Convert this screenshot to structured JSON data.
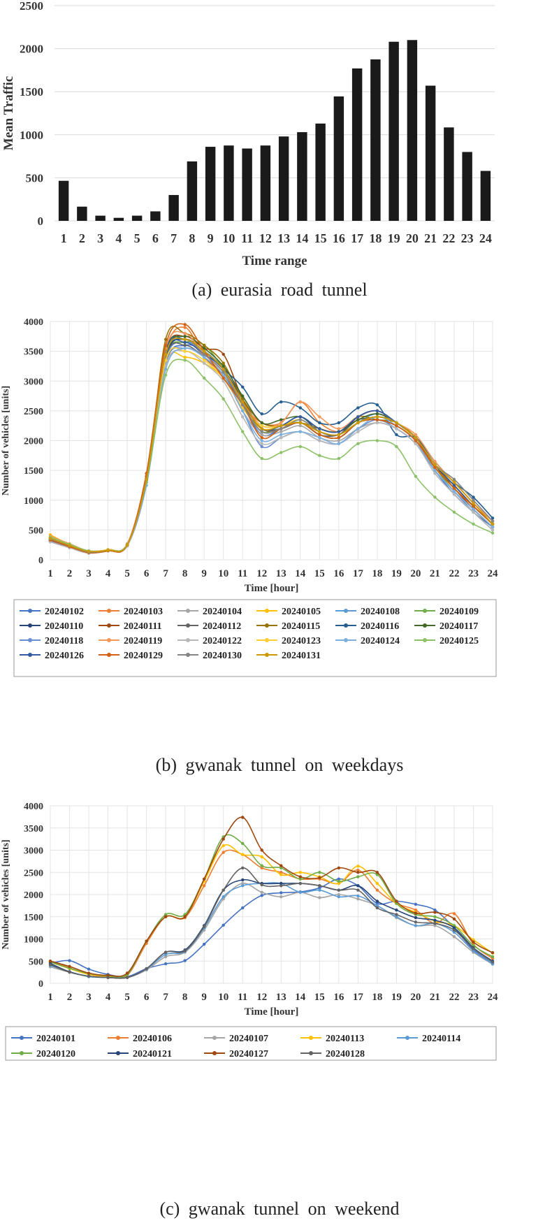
{
  "chart_data": [
    {
      "type": "bar",
      "caption": "(a) eurasia road tunnel",
      "xlabel": "Time range",
      "ylabel": "Mean Traffic",
      "ylim": [
        0,
        2500
      ],
      "yticks": [
        0,
        500,
        1000,
        1500,
        2000,
        2500
      ],
      "grid": true,
      "categories": [
        "1",
        "2",
        "3",
        "4",
        "5",
        "6",
        "7",
        "8",
        "9",
        "10",
        "11",
        "12",
        "13",
        "14",
        "15",
        "16",
        "17",
        "18",
        "19",
        "20",
        "21",
        "22",
        "23",
        "24"
      ],
      "values": [
        465,
        165,
        60,
        35,
        60,
        110,
        300,
        690,
        860,
        875,
        840,
        875,
        980,
        1030,
        1130,
        1445,
        1770,
        1875,
        2080,
        2100,
        1570,
        1085,
        800,
        580
      ],
      "colors": {
        "bar": "#1a1a1a"
      }
    },
    {
      "type": "line",
      "caption": "(b) gwanak tunnel on weekdays",
      "xlabel": "Time [hour]",
      "ylabel": "Number of vehicles [units]",
      "ylim": [
        0,
        4000
      ],
      "yticks": [
        0,
        500,
        1000,
        1500,
        2000,
        2500,
        3000,
        3500,
        4000
      ],
      "grid": true,
      "legend_position": "bottom",
      "x": [
        1,
        2,
        3,
        4,
        5,
        6,
        7,
        8,
        9,
        10,
        11,
        12,
        13,
        14,
        15,
        16,
        17,
        18,
        19,
        20,
        21,
        22,
        23,
        24
      ],
      "series": [
        {
          "name": "20240102",
          "color": "#4472C4",
          "values": [
            330,
            220,
            130,
            160,
            250,
            1300,
            3300,
            3600,
            3500,
            3200,
            2600,
            2100,
            2200,
            2300,
            2100,
            2050,
            2300,
            2400,
            2300,
            2000,
            1500,
            1100,
            800,
            550
          ]
        },
        {
          "name": "20240103",
          "color": "#ED7D31",
          "values": [
            380,
            250,
            140,
            160,
            260,
            1400,
            3500,
            3900,
            3400,
            3100,
            2600,
            2300,
            2300,
            2650,
            2300,
            2150,
            2350,
            2350,
            2250,
            2000,
            1600,
            1200,
            900,
            600
          ]
        },
        {
          "name": "20240104",
          "color": "#A5A5A5",
          "values": [
            350,
            230,
            130,
            160,
            250,
            1350,
            3400,
            3700,
            3400,
            3100,
            2500,
            2100,
            2150,
            2250,
            2050,
            2000,
            2200,
            2300,
            2200,
            1950,
            1500,
            1150,
            850,
            550
          ]
        },
        {
          "name": "20240105",
          "color": "#FFC000",
          "values": [
            420,
            260,
            150,
            170,
            260,
            1350,
            3300,
            3400,
            3300,
            3050,
            2550,
            2200,
            2250,
            2350,
            2150,
            2100,
            2300,
            2400,
            2300,
            2050,
            1550,
            1200,
            900,
            600
          ]
        },
        {
          "name": "20240108",
          "color": "#5B9BD5",
          "values": [
            340,
            230,
            130,
            160,
            250,
            1300,
            3350,
            3650,
            3500,
            3200,
            2600,
            2150,
            2200,
            2300,
            2100,
            2050,
            2300,
            2450,
            2300,
            2000,
            1500,
            1150,
            850,
            550
          ]
        },
        {
          "name": "20240109",
          "color": "#70AD47",
          "values": [
            360,
            240,
            140,
            160,
            260,
            1350,
            3400,
            3650,
            3600,
            3200,
            2600,
            2150,
            2250,
            2300,
            2100,
            2050,
            2300,
            2400,
            2300,
            2000,
            1550,
            1150,
            850,
            550
          ]
        },
        {
          "name": "20240110",
          "color": "#264478",
          "values": [
            350,
            230,
            130,
            160,
            250,
            1350,
            3400,
            3700,
            3500,
            3200,
            2700,
            2200,
            2250,
            2400,
            2150,
            2100,
            2400,
            2500,
            2300,
            2050,
            1600,
            1200,
            900,
            600
          ]
        },
        {
          "name": "20240111",
          "color": "#9E480E",
          "values": [
            340,
            240,
            130,
            160,
            250,
            1400,
            3500,
            3750,
            3550,
            3450,
            2700,
            2200,
            2200,
            2300,
            2100,
            2050,
            2300,
            2400,
            2300,
            2050,
            1550,
            1200,
            850,
            550
          ]
        },
        {
          "name": "20240112",
          "color": "#636363",
          "values": [
            360,
            250,
            140,
            170,
            260,
            1350,
            3400,
            3600,
            3400,
            3100,
            2600,
            2200,
            2200,
            2300,
            2100,
            2100,
            2350,
            2350,
            2250,
            2000,
            1550,
            1250,
            900,
            600
          ]
        },
        {
          "name": "20240115",
          "color": "#997300",
          "values": [
            320,
            220,
            120,
            150,
            240,
            1300,
            3700,
            3800,
            3600,
            3300,
            2700,
            2300,
            2250,
            2300,
            2200,
            2150,
            2400,
            2350,
            2300,
            2000,
            1550,
            1250,
            900,
            600
          ]
        },
        {
          "name": "20240116",
          "color": "#255E91",
          "values": [
            310,
            210,
            120,
            150,
            240,
            1300,
            3500,
            3700,
            3500,
            3200,
            2900,
            2450,
            2650,
            2550,
            2300,
            2300,
            2550,
            2600,
            2100,
            2050,
            1650,
            1300,
            1050,
            700
          ]
        },
        {
          "name": "20240117",
          "color": "#43682B",
          "values": [
            330,
            230,
            130,
            160,
            250,
            1350,
            3450,
            3750,
            3550,
            3250,
            2750,
            2300,
            2350,
            2400,
            2200,
            2150,
            2350,
            2450,
            2300,
            2050,
            1600,
            1300,
            950,
            650
          ]
        },
        {
          "name": "20240118",
          "color": "#698ED0",
          "values": [
            320,
            220,
            120,
            150,
            240,
            1300,
            3300,
            3550,
            3400,
            3100,
            2500,
            1900,
            2050,
            2150,
            2000,
            1950,
            2200,
            2350,
            2200,
            1950,
            1500,
            1150,
            800,
            500
          ]
        },
        {
          "name": "20240119",
          "color": "#F1975A",
          "values": [
            400,
            270,
            150,
            170,
            270,
            1450,
            3550,
            3800,
            3450,
            3150,
            2650,
            2250,
            2300,
            2650,
            2400,
            2200,
            2400,
            2500,
            2300,
            2100,
            1650,
            1300,
            950,
            650
          ]
        },
        {
          "name": "20240122",
          "color": "#B7B7B7",
          "values": [
            300,
            200,
            110,
            150,
            230,
            1250,
            3250,
            3500,
            3300,
            3000,
            2400,
            1950,
            2050,
            2150,
            2000,
            1950,
            2150,
            2300,
            2200,
            1950,
            1450,
            1100,
            800,
            500
          ]
        },
        {
          "name": "20240123",
          "color": "#FFCD33",
          "values": [
            380,
            260,
            140,
            170,
            260,
            1350,
            3350,
            3500,
            3350,
            3050,
            2550,
            2250,
            2250,
            2350,
            2150,
            2100,
            2300,
            2400,
            2300,
            2000,
            1550,
            1200,
            900,
            600
          ]
        },
        {
          "name": "20240124",
          "color": "#7CAFDD",
          "values": [
            350,
            230,
            130,
            160,
            250,
            1250,
            3200,
            3550,
            3400,
            3100,
            2500,
            2000,
            2100,
            2150,
            2050,
            1950,
            2200,
            2400,
            2250,
            2000,
            1500,
            1150,
            850,
            550
          ]
        },
        {
          "name": "20240125",
          "color": "#8CC168",
          "values": [
            380,
            260,
            150,
            160,
            260,
            1300,
            3100,
            3350,
            3050,
            2700,
            2150,
            1700,
            1800,
            1900,
            1750,
            1700,
            1950,
            2000,
            1900,
            1400,
            1050,
            800,
            600,
            450
          ]
        },
        {
          "name": "20240126",
          "color": "#335AA1",
          "values": [
            350,
            230,
            130,
            160,
            250,
            1350,
            3450,
            3650,
            3450,
            3200,
            2650,
            2200,
            2250,
            2400,
            2200,
            2150,
            2400,
            2500,
            2300,
            2050,
            1600,
            1250,
            900,
            600
          ]
        },
        {
          "name": "20240129",
          "color": "#D26012",
          "values": [
            330,
            220,
            120,
            150,
            250,
            1450,
            3600,
            3950,
            3500,
            3050,
            2600,
            2050,
            2200,
            2300,
            2100,
            2050,
            2300,
            2350,
            2250,
            2000,
            1550,
            1200,
            900,
            600
          ]
        },
        {
          "name": "20240130",
          "color": "#848484",
          "values": [
            350,
            240,
            130,
            160,
            250,
            1350,
            3450,
            3700,
            3450,
            3150,
            2600,
            2150,
            2200,
            2350,
            2150,
            2100,
            2300,
            2400,
            2300,
            2050,
            1600,
            1350,
            1000,
            650
          ]
        },
        {
          "name": "20240131",
          "color": "#CC9A00",
          "values": [
            360,
            240,
            140,
            160,
            250,
            1350,
            3450,
            3700,
            3500,
            3200,
            2650,
            2200,
            2250,
            2300,
            2150,
            2100,
            2300,
            2400,
            2300,
            2050,
            1600,
            1300,
            950,
            600
          ]
        }
      ]
    },
    {
      "type": "line",
      "caption": "(c) gwanak tunnel on weekend",
      "xlabel": "Time [hour]",
      "ylabel": "Number of vehicles [units]",
      "ylim": [
        0,
        4000
      ],
      "yticks": [
        0,
        500,
        1000,
        1500,
        2000,
        2500,
        3000,
        3500,
        4000
      ],
      "grid": true,
      "legend_position": "bottom",
      "x": [
        1,
        2,
        3,
        4,
        5,
        6,
        7,
        8,
        9,
        10,
        11,
        12,
        13,
        14,
        15,
        16,
        17,
        18,
        19,
        20,
        21,
        22,
        23,
        24
      ],
      "series": [
        {
          "name": "20240101",
          "color": "#4472C4",
          "values": [
            450,
            510,
            320,
            200,
            150,
            330,
            440,
            510,
            880,
            1310,
            1700,
            1980,
            2040,
            2060,
            2150,
            2350,
            2200,
            1800,
            1850,
            1780,
            1650,
            1250,
            750,
            450
          ]
        },
        {
          "name": "20240106",
          "color": "#ED7D31",
          "values": [
            500,
            350,
            200,
            150,
            180,
            900,
            1500,
            1480,
            2200,
            2950,
            2900,
            2600,
            2500,
            2350,
            2350,
            2250,
            2550,
            2100,
            1800,
            1650,
            1350,
            1570,
            880,
            560
          ]
        },
        {
          "name": "20240107",
          "color": "#A5A5A5",
          "values": [
            370,
            250,
            160,
            130,
            130,
            300,
            600,
            700,
            1200,
            1900,
            2250,
            2050,
            1950,
            2050,
            1930,
            2000,
            1900,
            1750,
            1480,
            1300,
            1300,
            1050,
            700,
            430
          ]
        },
        {
          "name": "20240113",
          "color": "#FFC000",
          "values": [
            480,
            330,
            200,
            160,
            200,
            950,
            1500,
            1500,
            2300,
            3100,
            2900,
            2850,
            2450,
            2500,
            2400,
            2250,
            2640,
            2250,
            1800,
            1600,
            1400,
            1300,
            980,
            680
          ]
        },
        {
          "name": "20240114",
          "color": "#5B9BD5",
          "values": [
            400,
            260,
            150,
            130,
            130,
            320,
            650,
            720,
            1250,
            1950,
            2200,
            2250,
            2250,
            2050,
            2100,
            1950,
            1970,
            1750,
            1500,
            1300,
            1350,
            1150,
            730,
            440
          ]
        },
        {
          "name": "20240120",
          "color": "#70AD47",
          "values": [
            480,
            340,
            220,
            170,
            200,
            950,
            1550,
            1550,
            2350,
            3300,
            3150,
            2650,
            2600,
            2350,
            2500,
            2300,
            2400,
            2450,
            1800,
            1550,
            1500,
            1300,
            850,
            600
          ]
        },
        {
          "name": "20240121",
          "color": "#264478",
          "values": [
            450,
            260,
            160,
            130,
            130,
            330,
            700,
            750,
            1300,
            2100,
            2330,
            2250,
            2250,
            2250,
            2200,
            2100,
            2200,
            1850,
            1650,
            1480,
            1420,
            1250,
            800,
            500
          ]
        },
        {
          "name": "20240127",
          "color": "#9E480E",
          "values": [
            500,
            380,
            230,
            180,
            230,
            950,
            1500,
            1500,
            2350,
            3250,
            3740,
            3000,
            2650,
            2400,
            2380,
            2600,
            2500,
            2500,
            1850,
            1580,
            1600,
            1450,
            930,
            690
          ]
        },
        {
          "name": "20240128",
          "color": "#636363",
          "values": [
            420,
            250,
            160,
            130,
            130,
            330,
            700,
            730,
            1280,
            2100,
            2600,
            2220,
            2200,
            2250,
            2200,
            2100,
            2100,
            1700,
            1550,
            1380,
            1350,
            1200,
            780,
            480
          ]
        }
      ]
    }
  ]
}
